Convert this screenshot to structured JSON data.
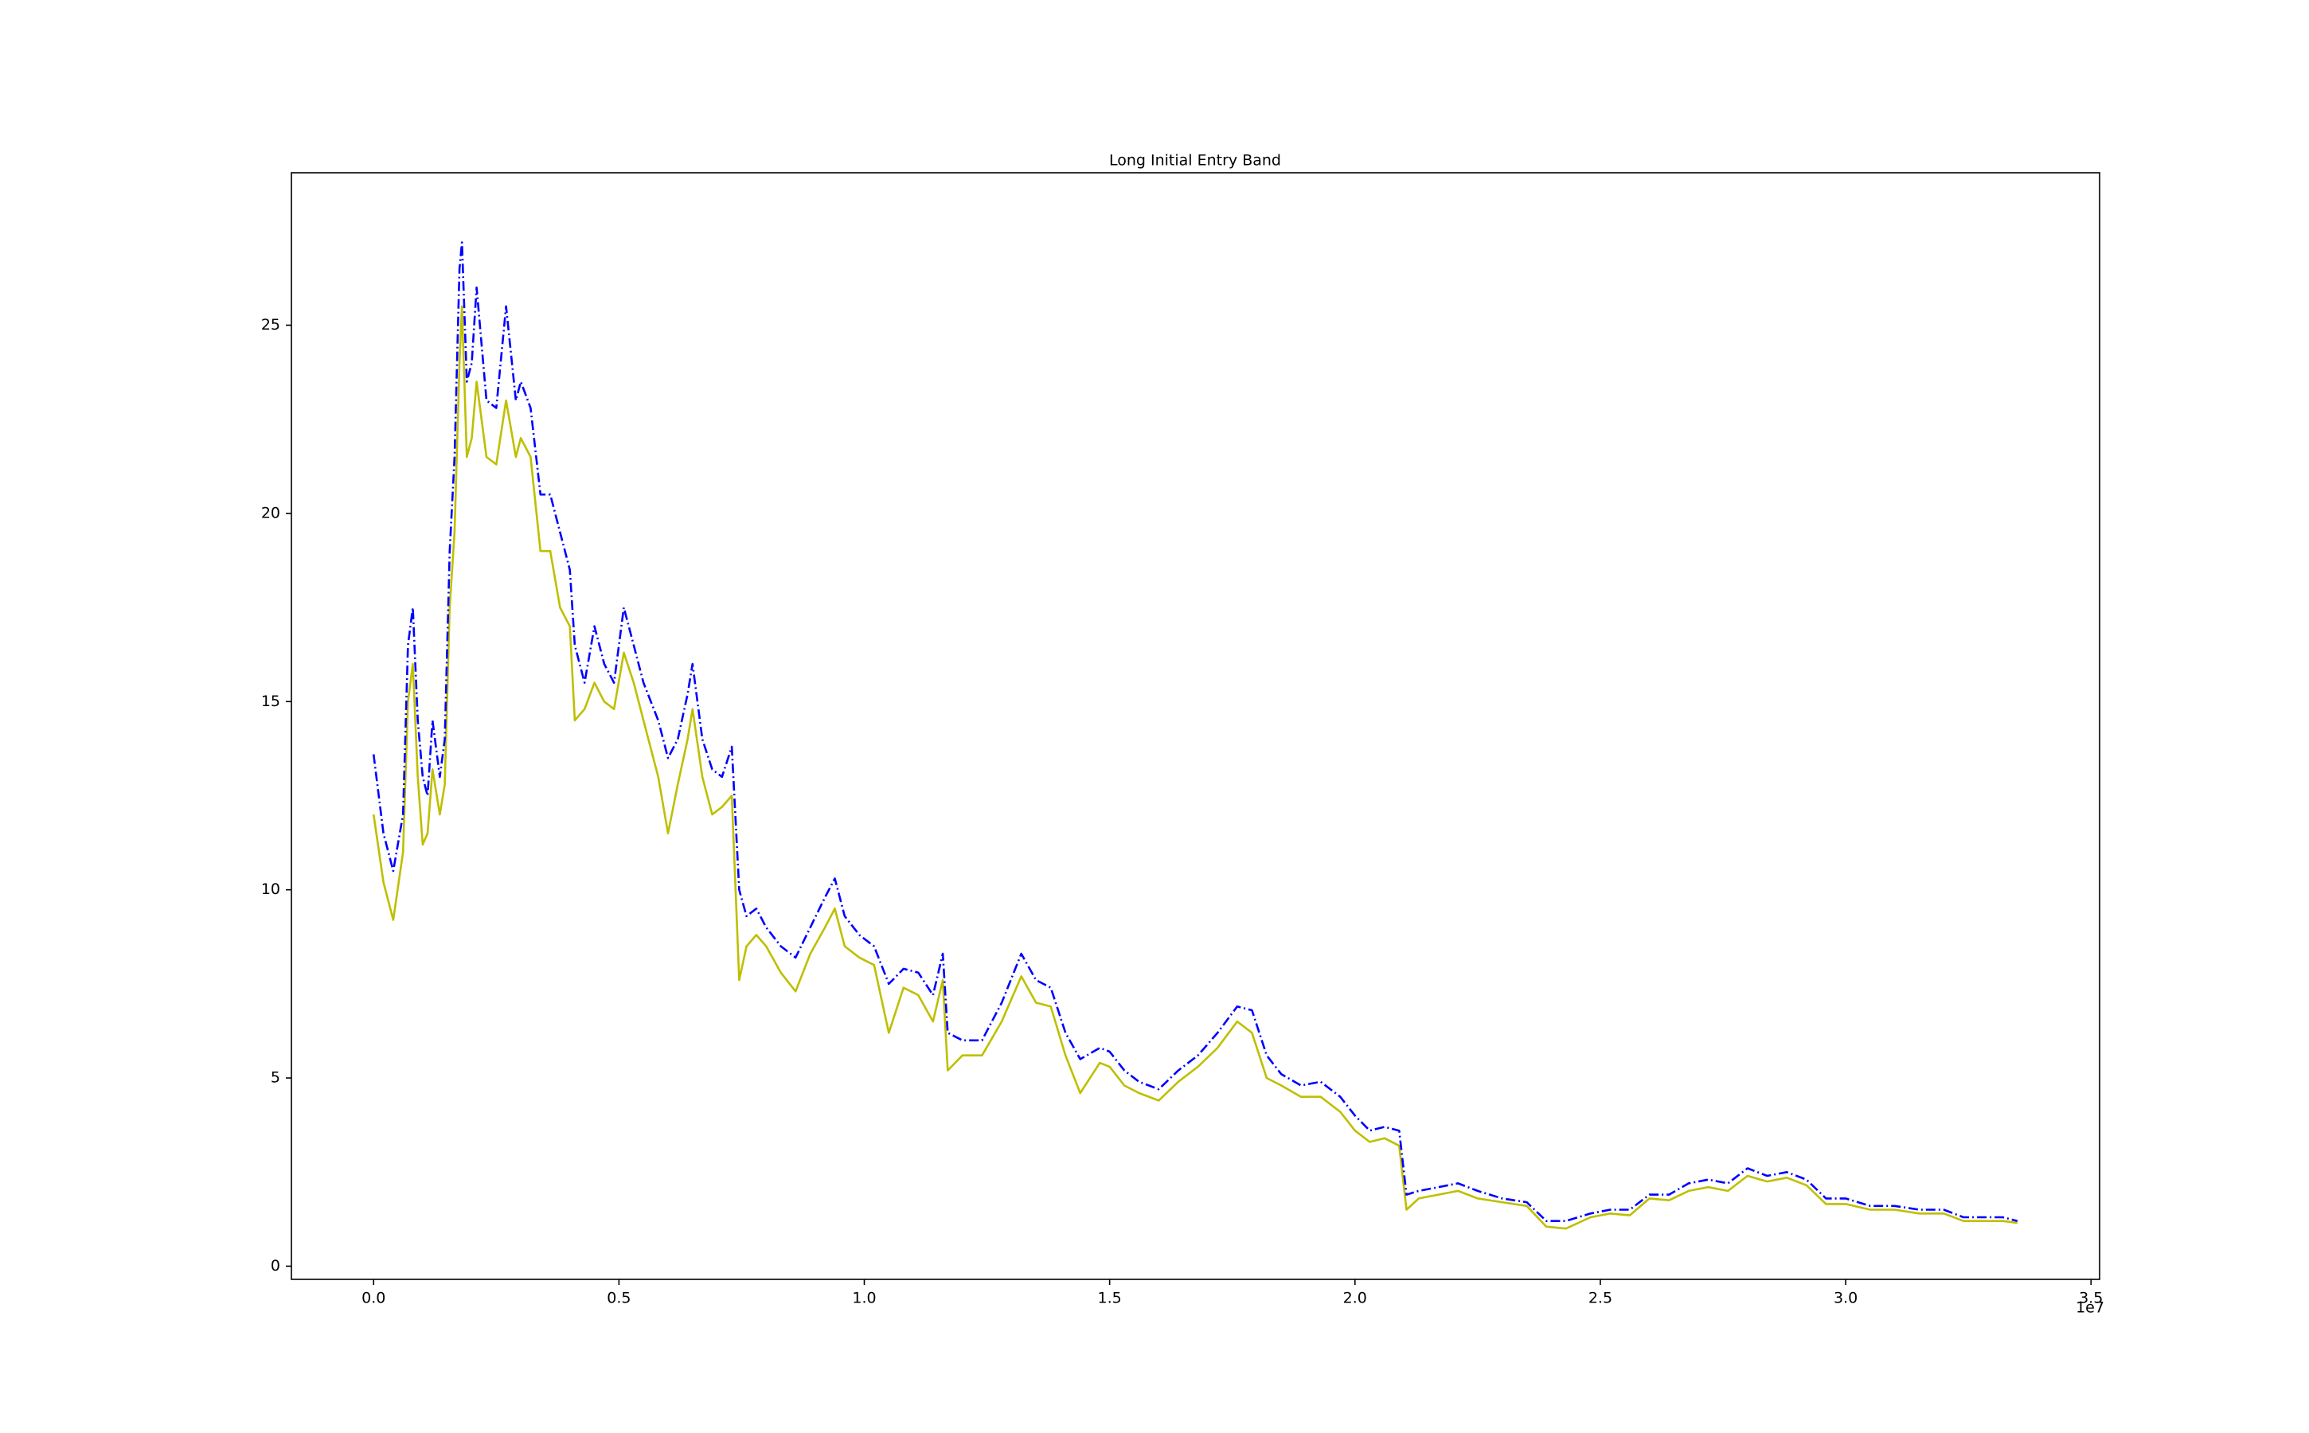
{
  "chart_data": {
    "type": "line",
    "title": "Long Initial Entry Band",
    "x": [
      0,
      200000,
      400000,
      600000,
      700000,
      800000,
      900000,
      1000000,
      1100000,
      1200000,
      1350000,
      1450000,
      1550000,
      1650000,
      1750000,
      1800000,
      1900000,
      2000000,
      2100000,
      2300000,
      2500000,
      2700000,
      2900000,
      3000000,
      3200000,
      3400000,
      3600000,
      3800000,
      4000000,
      4100000,
      4300000,
      4500000,
      4700000,
      4900000,
      5100000,
      5300000,
      5500000,
      5800000,
      6000000,
      6200000,
      6400000,
      6500000,
      6700000,
      6900000,
      7100000,
      7300000,
      7450000,
      7600000,
      7800000,
      8000000,
      8300000,
      8600000,
      8900000,
      9200000,
      9400000,
      9600000,
      9900000,
      10200000,
      10500000,
      10800000,
      11100000,
      11400000,
      11600000,
      11700000,
      12000000,
      12400000,
      12800000,
      13200000,
      13500000,
      13800000,
      14100000,
      14400000,
      14800000,
      15000000,
      15300000,
      15600000,
      16000000,
      16400000,
      16800000,
      17200000,
      17600000,
      17900000,
      18200000,
      18500000,
      18900000,
      19300000,
      19700000,
      20000000,
      20300000,
      20600000,
      20900000,
      21050000,
      21300000,
      21700000,
      22100000,
      22500000,
      23000000,
      23500000,
      23900000,
      24300000,
      24800000,
      25200000,
      25600000,
      26000000,
      26400000,
      26800000,
      27200000,
      27600000,
      28000000,
      28400000,
      28800000,
      29200000,
      29600000,
      30000000,
      30500000,
      31000000,
      31500000,
      32000000,
      32400000,
      32800000,
      33200000,
      33500000
    ],
    "series": [
      {
        "color": "#bfbf00",
        "style": "solid",
        "values": [
          12.0,
          10.2,
          9.2,
          11.0,
          15.0,
          16.0,
          13.0,
          11.2,
          11.5,
          13.2,
          12.0,
          12.8,
          17.5,
          19.5,
          24.0,
          25.5,
          21.5,
          22.0,
          23.5,
          21.5,
          21.3,
          23.0,
          21.5,
          22.0,
          21.5,
          19.0,
          19.0,
          17.5,
          17.0,
          14.5,
          14.8,
          15.5,
          15.0,
          14.8,
          16.3,
          15.5,
          14.5,
          13.0,
          11.5,
          12.8,
          14.0,
          14.8,
          13.0,
          12.0,
          12.2,
          12.5,
          7.6,
          8.5,
          8.8,
          8.5,
          7.8,
          7.3,
          8.3,
          9.0,
          9.5,
          8.5,
          8.2,
          8.0,
          6.2,
          7.4,
          7.2,
          6.5,
          7.6,
          5.2,
          5.6,
          5.6,
          6.5,
          7.7,
          7.0,
          6.9,
          5.6,
          4.6,
          5.4,
          5.3,
          4.8,
          4.6,
          4.4,
          4.9,
          5.3,
          5.8,
          6.5,
          6.2,
          5.0,
          4.8,
          4.5,
          4.5,
          4.1,
          3.6,
          3.3,
          3.4,
          3.2,
          1.5,
          1.8,
          1.9,
          2.0,
          1.8,
          1.7,
          1.6,
          1.05,
          1.0,
          1.3,
          1.4,
          1.35,
          1.8,
          1.75,
          2.0,
          2.1,
          2.0,
          2.4,
          2.25,
          2.35,
          2.15,
          1.65,
          1.65,
          1.5,
          1.5,
          1.4,
          1.4,
          1.2,
          1.2,
          1.2,
          1.15
        ]
      },
      {
        "color": "#0000ff",
        "style": "dashdot",
        "values": [
          13.6,
          11.5,
          10.5,
          12.0,
          16.5,
          17.5,
          14.5,
          13.0,
          12.5,
          14.5,
          13.0,
          14.0,
          19.0,
          21.5,
          26.5,
          27.2,
          23.5,
          24.0,
          26.0,
          23.0,
          22.8,
          25.5,
          23.0,
          23.5,
          22.8,
          20.5,
          20.5,
          19.5,
          18.5,
          16.5,
          15.5,
          17.0,
          16.0,
          15.5,
          17.5,
          16.5,
          15.5,
          14.5,
          13.5,
          14.0,
          15.2,
          16.0,
          14.0,
          13.2,
          13.0,
          13.8,
          10.0,
          9.3,
          9.5,
          9.0,
          8.5,
          8.2,
          9.0,
          9.8,
          10.3,
          9.3,
          8.8,
          8.5,
          7.5,
          7.9,
          7.8,
          7.2,
          8.3,
          6.2,
          6.0,
          6.0,
          7.0,
          8.3,
          7.6,
          7.4,
          6.2,
          5.5,
          5.8,
          5.7,
          5.2,
          4.9,
          4.7,
          5.2,
          5.6,
          6.2,
          6.9,
          6.8,
          5.6,
          5.1,
          4.8,
          4.9,
          4.5,
          4.0,
          3.6,
          3.7,
          3.6,
          1.9,
          2.0,
          2.1,
          2.2,
          2.0,
          1.8,
          1.7,
          1.2,
          1.2,
          1.4,
          1.5,
          1.5,
          1.9,
          1.9,
          2.2,
          2.3,
          2.2,
          2.6,
          2.4,
          2.5,
          2.3,
          1.8,
          1.8,
          1.6,
          1.6,
          1.5,
          1.5,
          1.3,
          1.3,
          1.3,
          1.2
        ]
      }
    ],
    "xlim": [
      -1675000,
      35175000
    ],
    "xticks": [
      {
        "value": 0,
        "label": "0.0"
      },
      {
        "value": 5000000,
        "label": "0.5"
      },
      {
        "value": 10000000,
        "label": "1.0"
      },
      {
        "value": 15000000,
        "label": "1.5"
      },
      {
        "value": 20000000,
        "label": "2.0"
      },
      {
        "value": 25000000,
        "label": "2.5"
      },
      {
        "value": 30000000,
        "label": "3.0"
      },
      {
        "value": 35000000,
        "label": "3.5"
      }
    ],
    "x_offset_label": "1e7",
    "ylim": [
      -0.35,
      29.05
    ],
    "yticks": [
      0,
      5,
      10,
      15,
      20,
      25
    ],
    "grid": false
  }
}
